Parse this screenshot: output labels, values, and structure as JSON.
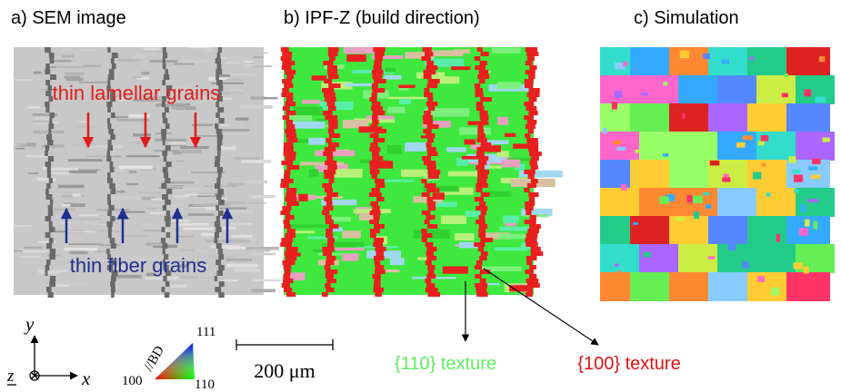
{
  "panels": [
    {
      "title": "a) SEM image",
      "annotations": [
        "thin lamellar grains",
        "thin fiber grains"
      ]
    },
    {
      "title": "b) IPF-Z (build direction)"
    },
    {
      "title": "c) Simulation"
    }
  ],
  "axes": {
    "y": "y",
    "x": "x",
    "z": "z"
  },
  "ipf_key": {
    "direction": "//BD",
    "corners": [
      "111",
      "100",
      "110"
    ]
  },
  "scale_bar": "200 μm",
  "callouts": [
    "{110} texture",
    "{100} texture"
  ]
}
